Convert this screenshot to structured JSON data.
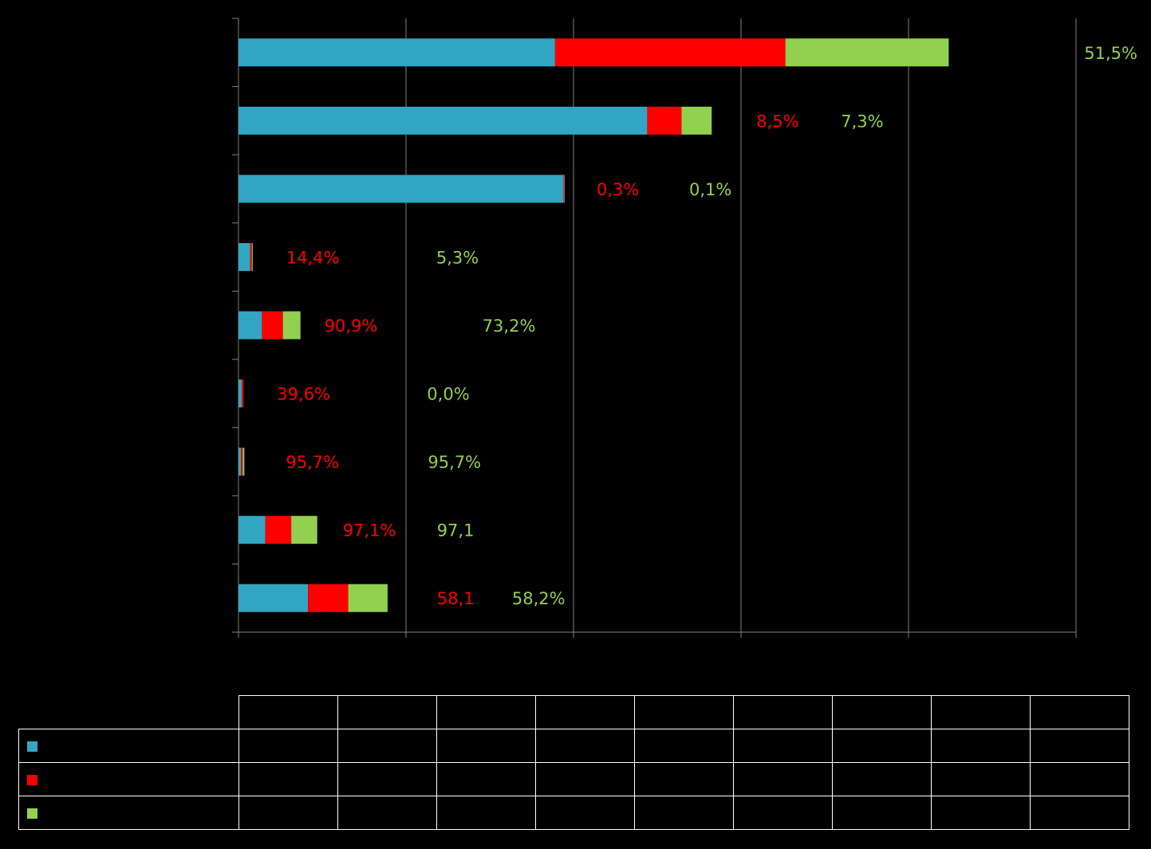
{
  "chart_data": {
    "type": "bar",
    "orientation": "horizontal",
    "stacked": true,
    "grid": true,
    "xlim": [
      0,
      100
    ],
    "series": [
      {
        "name": "",
        "color": "#31a6c4",
        "values": [
          37.8,
          48.8,
          38.8,
          1.4,
          2.8,
          0.4,
          0.3,
          3.2,
          8.3
        ]
      },
      {
        "name": "",
        "color": "#ff0000",
        "values": [
          27.5,
          4.1,
          0.1,
          0.2,
          2.5,
          0.2,
          0.2,
          3.1,
          4.8
        ]
      },
      {
        "name": "",
        "color": "#92d050",
        "values": [
          19.5,
          3.6,
          0.05,
          0.1,
          2.1,
          0.0,
          0.2,
          3.1,
          4.7
        ]
      }
    ],
    "labels": [
      {
        "red": "",
        "green": "51,5%"
      },
      {
        "red": "8,5%",
        "green": "7,3%"
      },
      {
        "red": "0,3%",
        "green": "0,1%"
      },
      {
        "red": "14,4%",
        "green": "5,3%"
      },
      {
        "red": "90,9%",
        "green": "73,2%"
      },
      {
        "red": "39,6%",
        "green": "0,0%"
      },
      {
        "red": "95,7%",
        "green": "95,7%"
      },
      {
        "red": "97,1%",
        "green": "97,1"
      },
      {
        "red": "58,1",
        "green": "58,2%"
      }
    ]
  },
  "legend": {
    "colors": [
      "#31a6c4",
      "#ff0000",
      "#92d050"
    ],
    "columns": 9
  }
}
